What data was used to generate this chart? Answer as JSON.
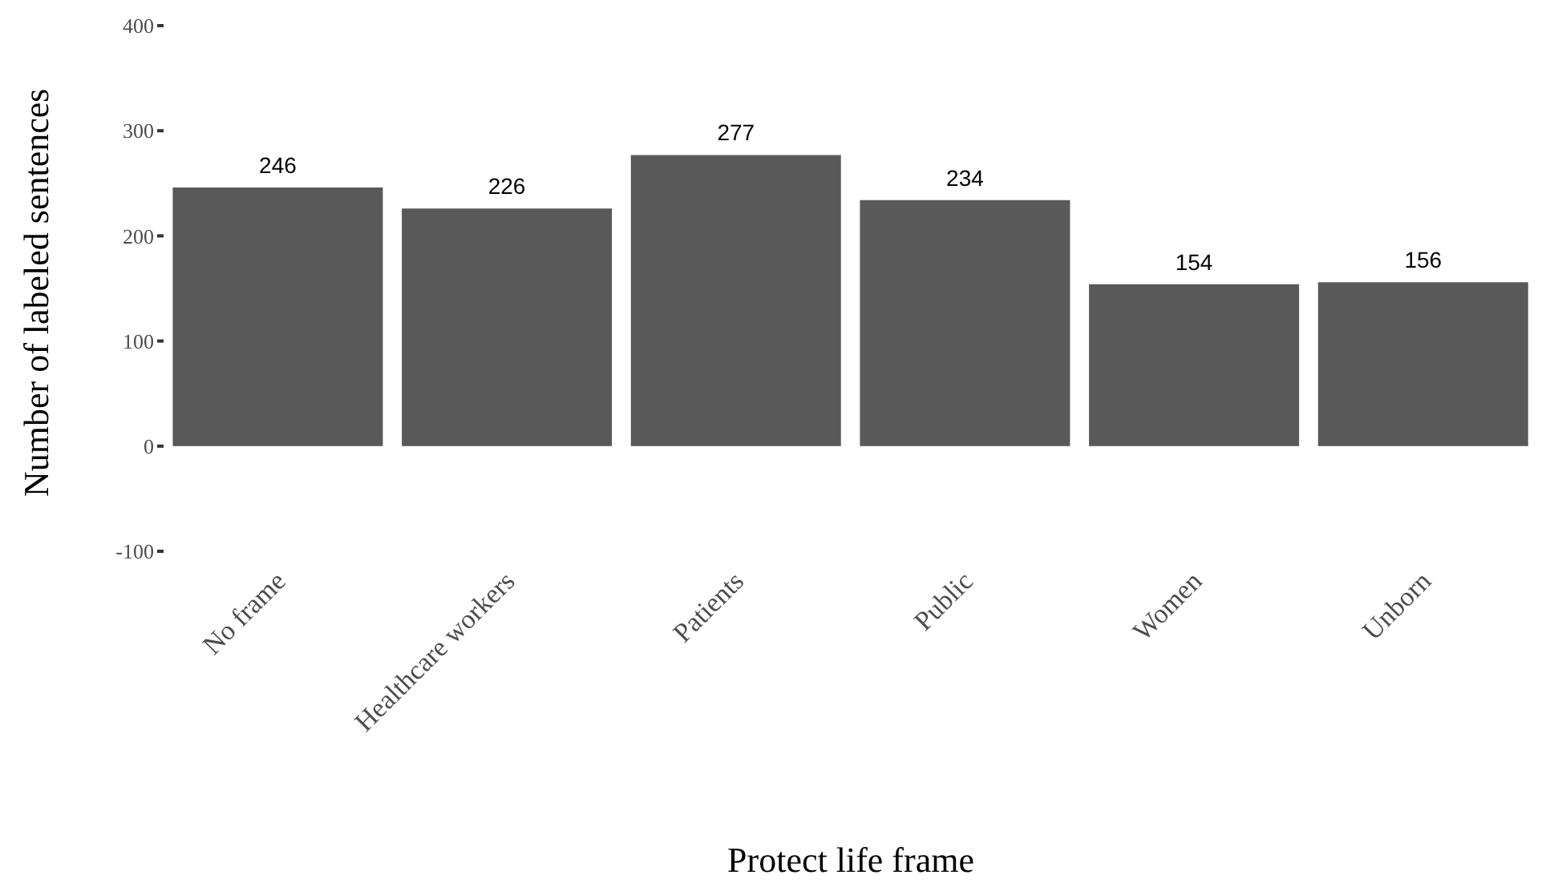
{
  "chart_data": {
    "type": "bar",
    "xlabel": "Protect life frame",
    "ylabel": "Number of labeled sentences",
    "categories": [
      "No frame",
      "Healthcare workers",
      "Patients",
      "Public",
      "Women",
      "Unborn"
    ],
    "values": [
      246,
      226,
      277,
      234,
      154,
      156
    ],
    "color": "#595959",
    "ylim": [
      -100,
      400
    ],
    "yticks": [
      -100,
      0,
      100,
      200,
      300,
      400
    ],
    "grid": false,
    "data_labels": true
  }
}
